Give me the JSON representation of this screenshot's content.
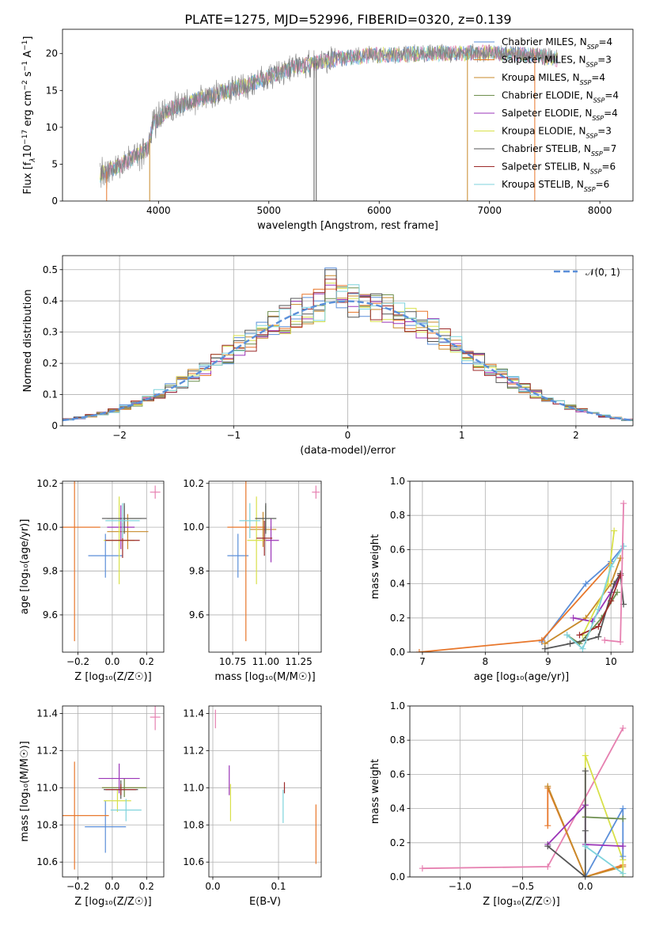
{
  "figure": {
    "title": "PLATE=1275, MJD=52996, FIBERID=0320, z=0.139",
    "colors": {
      "chabrier_miles": "#5b8fd9",
      "salpeter_miles": "#e8772b",
      "kroupa_miles": "#c88a2a",
      "chabrier_elodie": "#6e8f4e",
      "salpeter_elodie": "#9b35b8",
      "kroupa_elodie": "#d8e04a",
      "chabrier_stelib": "#555555",
      "salpeter_stelib": "#9c2a2a",
      "kroupa_stelib": "#7fd3dc",
      "sample_extra": "#e680b0",
      "normal_curve": "#5b8fd9"
    }
  },
  "chart_data": [
    {
      "id": "spectrum",
      "type": "line",
      "xlabel": "wavelength [Angstrom, rest frame]",
      "ylabel_parts": [
        "Flux [f",
        "λ",
        "10",
        "−17",
        " erg cm",
        "−2",
        " s",
        "−1",
        " A",
        "−1",
        "]"
      ],
      "xlim": [
        3130,
        8300
      ],
      "ylim": [
        0,
        23.3
      ],
      "xticks": [
        4000,
        5000,
        6000,
        7000,
        8000
      ],
      "yticks": [
        0,
        5,
        10,
        15,
        20
      ],
      "grid": false,
      "legend_position": "right",
      "legend": [
        {
          "label": "Chabrier MILES, N",
          "sub": "SSP",
          "tail": "=4",
          "color_key": "chabrier_miles"
        },
        {
          "label": "Salpeter MILES, N",
          "sub": "SSP",
          "tail": "=3",
          "color_key": "salpeter_miles"
        },
        {
          "label": "Kroupa MILES, N",
          "sub": "SSP",
          "tail": "=4",
          "color_key": "kroupa_miles"
        },
        {
          "label": "Chabrier ELODIE, N",
          "sub": "SSP",
          "tail": "=4",
          "color_key": "chabrier_elodie"
        },
        {
          "label": "Salpeter ELODIE, N",
          "sub": "SSP",
          "tail": "=4",
          "color_key": "salpeter_elodie"
        },
        {
          "label": "Kroupa ELODIE, N",
          "sub": "SSP",
          "tail": "=3",
          "color_key": "kroupa_elodie"
        },
        {
          "label": "Chabrier STELIB, N",
          "sub": "SSP",
          "tail": "=7",
          "color_key": "chabrier_stelib"
        },
        {
          "label": "Salpeter STELIB, N",
          "sub": "SSP",
          "tail": "=6",
          "color_key": "salpeter_stelib"
        },
        {
          "label": "Kroupa STELIB, N",
          "sub": "SSP",
          "tail": "=6",
          "color_key": "kroupa_stelib"
        }
      ],
      "continuum": [
        [
          3470,
          3.6
        ],
        [
          3650,
          4.8
        ],
        [
          3900,
          7.0
        ],
        [
          3950,
          10.5
        ],
        [
          4100,
          12.5
        ],
        [
          4400,
          14.0
        ],
        [
          4800,
          15.7
        ],
        [
          5200,
          18.0
        ],
        [
          5600,
          19.3
        ],
        [
          6000,
          19.8
        ],
        [
          6500,
          20.0
        ],
        [
          7000,
          20.1
        ],
        [
          7400,
          19.8
        ],
        [
          7600,
          19.3
        ]
      ],
      "model_colors": [
        "chabrier_miles",
        "kroupa_elodie",
        "kroupa_stelib",
        "sample_extra"
      ],
      "spikes": [
        {
          "x": 3530,
          "y": 0,
          "color_key": "salpeter_miles"
        },
        {
          "x": 3920,
          "y": 0,
          "color_key": "kroupa_miles"
        },
        {
          "x": 5410,
          "y": 0,
          "color_key": "chabrier_stelib"
        },
        {
          "x": 5430,
          "y": 0,
          "color_key": "chabrier_stelib"
        },
        {
          "x": 6800,
          "y": 0,
          "color_key": "kroupa_miles"
        },
        {
          "x": 7410,
          "y": 0,
          "color_key": "salpeter_miles"
        }
      ]
    },
    {
      "id": "residuals",
      "type": "histogram",
      "xlabel": "(data-model)/error",
      "ylabel": "Normed distribution",
      "xlim": [
        -2.5,
        2.5
      ],
      "ylim": [
        0,
        0.545
      ],
      "xticks": [
        -2,
        -1,
        0,
        1,
        2
      ],
      "yticks": [
        0.0,
        0.1,
        0.2,
        0.3,
        0.4,
        0.5
      ],
      "grid": true,
      "legend_position": "top-right",
      "legend_label": "𝒩(0, 1)",
      "bin_width": 0.1,
      "bin_start": -2.5,
      "reference_curve": {
        "name": "N(0,1)",
        "mean": 0,
        "sigma": 1
      },
      "series_colors": [
        "chabrier_miles",
        "salpeter_miles",
        "kroupa_miles",
        "chabrier_elodie",
        "salpeter_elodie",
        "kroupa_elodie",
        "chabrier_stelib",
        "salpeter_stelib",
        "kroupa_stelib"
      ],
      "seeds": [
        3,
        7,
        11,
        13,
        17,
        19,
        23,
        29,
        31
      ]
    },
    {
      "id": "age-vs-metallicity",
      "type": "scatter",
      "xlabel": "Z [log₁₀(Z/Z☉)]",
      "ylabel": "age  [log₁₀(age/yr)]",
      "xlim": [
        -0.29,
        0.3
      ],
      "ylim": [
        9.43,
        10.21
      ],
      "xticks": [
        -0.2,
        0.0,
        0.2
      ],
      "xticklabels": [
        "−0.2",
        "0.0",
        "0.2"
      ],
      "yticks": [
        9.6,
        9.8,
        10.0,
        10.2
      ],
      "yticklabels": [
        "9.6",
        "9.8",
        "10.0",
        "10.2"
      ],
      "grid": true,
      "points": [
        {
          "x": -0.04,
          "y": 9.87,
          "xerr": 0.1,
          "yerr": 0.1,
          "color_key": "chabrier_miles"
        },
        {
          "x": -0.22,
          "y": 10.0,
          "xerr": 0.15,
          "yerr": 0.52,
          "color_key": "salpeter_miles"
        },
        {
          "x": 0.09,
          "y": 9.98,
          "xerr": 0.12,
          "yerr": 0.08,
          "color_key": "kroupa_miles"
        },
        {
          "x": 0.07,
          "y": 10.04,
          "xerr": 0.1,
          "yerr": 0.06,
          "color_key": "chabrier_elodie"
        },
        {
          "x": 0.05,
          "y": 10.0,
          "xerr": 0.08,
          "yerr": 0.1,
          "color_key": "salpeter_elodie"
        },
        {
          "x": 0.04,
          "y": 9.94,
          "xerr": 0.09,
          "yerr": 0.2,
          "color_key": "kroupa_elodie"
        },
        {
          "x": 0.07,
          "y": 10.04,
          "xerr": 0.13,
          "yerr": 0.07,
          "color_key": "chabrier_stelib"
        },
        {
          "x": 0.06,
          "y": 9.94,
          "xerr": 0.1,
          "yerr": 0.08,
          "color_key": "salpeter_stelib"
        },
        {
          "x": 0.06,
          "y": 10.03,
          "xerr": 0.1,
          "yerr": 0.08,
          "color_key": "kroupa_stelib"
        },
        {
          "x": 0.25,
          "y": 10.16,
          "xerr": 0.03,
          "yerr": 0.03,
          "color_key": "sample_extra"
        }
      ]
    },
    {
      "id": "age-vs-mass",
      "type": "scatter",
      "xlabel": "mass [log₁₀(M/M☉)]",
      "ylabel": "",
      "xlim": [
        10.57,
        11.42
      ],
      "ylim": [
        9.43,
        10.21
      ],
      "xticks": [
        10.75,
        11.0,
        11.25
      ],
      "xticklabels": [
        "10.75",
        "11.00",
        "11.25"
      ],
      "yticks": [
        9.6,
        9.8,
        10.0,
        10.2
      ],
      "yticklabels": [
        "9.6",
        "9.8",
        "10.0",
        "10.2"
      ],
      "grid": true,
      "points": [
        {
          "x": 10.79,
          "y": 9.87,
          "xerr": 0.08,
          "yerr": 0.1,
          "color_key": "chabrier_miles"
        },
        {
          "x": 10.85,
          "y": 10.0,
          "xerr": 0.14,
          "yerr": 0.52,
          "color_key": "salpeter_miles"
        },
        {
          "x": 10.98,
          "y": 9.99,
          "xerr": 0.1,
          "yerr": 0.08,
          "color_key": "kroupa_miles"
        },
        {
          "x": 11.0,
          "y": 10.04,
          "xerr": 0.08,
          "yerr": 0.06,
          "color_key": "chabrier_elodie"
        },
        {
          "x": 11.04,
          "y": 9.94,
          "xerr": 0.06,
          "yerr": 0.1,
          "color_key": "salpeter_elodie"
        },
        {
          "x": 10.93,
          "y": 9.94,
          "xerr": 0.07,
          "yerr": 0.2,
          "color_key": "kroupa_elodie"
        },
        {
          "x": 11.0,
          "y": 10.04,
          "xerr": 0.08,
          "yerr": 0.07,
          "color_key": "chabrier_stelib"
        },
        {
          "x": 10.99,
          "y": 9.95,
          "xerr": 0.06,
          "yerr": 0.08,
          "color_key": "salpeter_stelib"
        },
        {
          "x": 10.88,
          "y": 10.03,
          "xerr": 0.08,
          "yerr": 0.08,
          "color_key": "kroupa_stelib"
        },
        {
          "x": 11.38,
          "y": 10.16,
          "xerr": 0.03,
          "yerr": 0.03,
          "color_key": "sample_extra"
        }
      ]
    },
    {
      "id": "mass-weight-vs-age",
      "type": "line",
      "xlabel": "age  [log₁₀(age/yr)]",
      "ylabel": "mass weight",
      "xlim": [
        6.8,
        10.35
      ],
      "ylim": [
        0.0,
        1.0
      ],
      "xticks": [
        7,
        8,
        9,
        10
      ],
      "yticks": [
        0.0,
        0.2,
        0.4,
        0.6,
        0.8,
        1.0
      ],
      "yticklabels": [
        "0.0",
        "0.2",
        "0.4",
        "0.6",
        "0.8",
        "1.0"
      ],
      "grid": true,
      "series": [
        {
          "color_key": "chabrier_miles",
          "x": [
            8.9,
            9.6,
            10.0,
            10.2
          ],
          "y": [
            0.06,
            0.4,
            0.53,
            0.62
          ]
        },
        {
          "color_key": "salpeter_miles",
          "x": [
            6.95,
            8.9,
            10.0
          ],
          "y": [
            0.0,
            0.07,
            0.52
          ]
        },
        {
          "color_key": "kroupa_miles",
          "x": [
            8.95,
            9.6,
            10.0,
            10.15
          ],
          "y": [
            0.05,
            0.2,
            0.4,
            0.55
          ]
        },
        {
          "color_key": "chabrier_elodie",
          "x": [
            9.3,
            9.5,
            9.85,
            10.1
          ],
          "y": [
            0.1,
            0.05,
            0.2,
            0.35
          ]
        },
        {
          "color_key": "salpeter_elodie",
          "x": [
            9.4,
            9.7,
            10.0,
            10.15
          ],
          "y": [
            0.2,
            0.18,
            0.35,
            0.45
          ]
        },
        {
          "color_key": "kroupa_elodie",
          "x": [
            9.55,
            9.95,
            10.05
          ],
          "y": [
            0.1,
            0.4,
            0.71
          ]
        },
        {
          "color_key": "chabrier_stelib",
          "x": [
            8.95,
            9.35,
            9.6,
            9.8,
            10.05,
            10.15,
            10.2
          ],
          "y": [
            0.02,
            0.05,
            0.07,
            0.09,
            0.4,
            0.46,
            0.28
          ]
        },
        {
          "color_key": "salpeter_stelib",
          "x": [
            9.5,
            9.8,
            10.0,
            10.15
          ],
          "y": [
            0.1,
            0.15,
            0.3,
            0.45
          ]
        },
        {
          "color_key": "kroupa_stelib",
          "x": [
            9.3,
            9.55,
            9.8,
            10.0,
            10.2
          ],
          "y": [
            0.1,
            0.02,
            0.25,
            0.5,
            0.62
          ]
        },
        {
          "color_key": "sample_extra",
          "x": [
            9.9,
            10.15,
            10.2
          ],
          "y": [
            0.07,
            0.06,
            0.87
          ]
        }
      ]
    },
    {
      "id": "mass-vs-metallicity",
      "type": "scatter",
      "xlabel": "Z [log₁₀(Z/Z☉)]",
      "ylabel": "mass [log₁₀(M/M☉)]",
      "xlim": [
        -0.29,
        0.3
      ],
      "ylim": [
        10.52,
        11.44
      ],
      "xticks": [
        -0.2,
        0.0,
        0.2
      ],
      "xticklabels": [
        "−0.2",
        "0.0",
        "0.2"
      ],
      "yticks": [
        10.6,
        10.8,
        11.0,
        11.2,
        11.4
      ],
      "yticklabels": [
        "10.6",
        "10.8",
        "11.0",
        "11.2",
        "11.4"
      ],
      "grid": true,
      "points": [
        {
          "x": -0.04,
          "y": 10.79,
          "xerr": 0.12,
          "yerr": 0.14,
          "color_key": "chabrier_miles"
        },
        {
          "x": -0.22,
          "y": 10.85,
          "xerr": 0.2,
          "yerr": 0.29,
          "color_key": "salpeter_miles"
        },
        {
          "x": 0.07,
          "y": 11.0,
          "xerr": 0.13,
          "yerr": 0.05,
          "color_key": "kroupa_miles"
        },
        {
          "x": 0.07,
          "y": 11.0,
          "xerr": 0.13,
          "yerr": 0.05,
          "color_key": "chabrier_elodie"
        },
        {
          "x": 0.04,
          "y": 11.05,
          "xerr": 0.12,
          "yerr": 0.08,
          "color_key": "salpeter_elodie"
        },
        {
          "x": 0.03,
          "y": 10.93,
          "xerr": 0.08,
          "yerr": 0.06,
          "color_key": "kroupa_elodie"
        },
        {
          "x": 0.05,
          "y": 10.99,
          "xerr": 0.1,
          "yerr": 0.05,
          "color_key": "chabrier_stelib"
        },
        {
          "x": 0.05,
          "y": 10.99,
          "xerr": 0.09,
          "yerr": 0.03,
          "color_key": "salpeter_stelib"
        },
        {
          "x": 0.08,
          "y": 10.88,
          "xerr": 0.09,
          "yerr": 0.06,
          "color_key": "kroupa_stelib"
        },
        {
          "x": 0.25,
          "y": 11.38,
          "xerr": 0.03,
          "yerr": 0.07,
          "color_key": "sample_extra"
        }
      ]
    },
    {
      "id": "mass-vs-extinction",
      "type": "scatter",
      "xlabel": "E(B-V)",
      "ylabel": "",
      "xlim": [
        -0.006,
        0.165
      ],
      "ylim": [
        10.52,
        11.44
      ],
      "xticks": [
        0.0,
        0.1
      ],
      "xticklabels": [
        "0.0",
        "0.1"
      ],
      "yticks": [
        10.6,
        10.8,
        11.0,
        11.2,
        11.4
      ],
      "yticklabels": [
        "10.6",
        "10.8",
        "11.0",
        "11.2",
        "11.4"
      ],
      "grid": true,
      "points": [
        {
          "x": 0.004,
          "y": 11.37,
          "xerr": 0,
          "yerr": 0.05,
          "color_key": "sample_extra"
        },
        {
          "x": 0.025,
          "y": 11.04,
          "xerr": 0,
          "yerr": 0.08,
          "color_key": "salpeter_elodie"
        },
        {
          "x": 0.027,
          "y": 10.92,
          "xerr": 0,
          "yerr": 0.1,
          "color_key": "kroupa_elodie"
        },
        {
          "x": 0.109,
          "y": 11.0,
          "xerr": 0,
          "yerr": 0.03,
          "color_key": "salpeter_stelib"
        },
        {
          "x": 0.107,
          "y": 10.9,
          "xerr": 0,
          "yerr": 0.09,
          "color_key": "kroupa_stelib"
        },
        {
          "x": 0.157,
          "y": 10.75,
          "xerr": 0,
          "yerr": 0.16,
          "color_key": "salpeter_miles"
        }
      ]
    },
    {
      "id": "mass-weight-vs-metallicity",
      "type": "line",
      "xlabel": "Z [log₁₀(Z/Z☉)]",
      "ylabel": "mass weight",
      "xlim": [
        -1.4,
        0.38
      ],
      "ylim": [
        0.0,
        1.0
      ],
      "xticks": [
        -1.0,
        -0.5,
        0.0
      ],
      "xticklabels": [
        "−1.0",
        "−0.5",
        "0.0"
      ],
      "yticks": [
        0.0,
        0.2,
        0.4,
        0.6,
        0.8,
        1.0
      ],
      "yticklabels": [
        "0.0",
        "0.2",
        "0.4",
        "0.6",
        "0.8",
        "1.0"
      ],
      "grid": true,
      "series": [
        {
          "color_key": "sample_extra",
          "x": [
            -1.3,
            -0.3,
            0.3
          ],
          "y": [
            0.05,
            0.06,
            0.87
          ]
        },
        {
          "color_key": "salpeter_miles",
          "x": [
            -0.3,
            -0.3,
            0.0,
            0.3
          ],
          "y": [
            0.3,
            0.52,
            0.0,
            0.07
          ]
        },
        {
          "color_key": "kroupa_miles",
          "x": [
            -0.3,
            0.0,
            0.3
          ],
          "y": [
            0.53,
            0.0,
            0.06
          ]
        },
        {
          "color_key": "kroupa_elodie",
          "x": [
            0.0,
            0.0,
            0.3,
            0.3
          ],
          "y": [
            0.35,
            0.71,
            0.1,
            0.0
          ]
        },
        {
          "color_key": "chabrier_miles",
          "x": [
            0.0,
            0.3,
            0.3
          ],
          "y": [
            0.0,
            0.4,
            0.12
          ]
        },
        {
          "color_key": "salpeter_elodie",
          "x": [
            -0.3,
            0.0,
            0.0,
            0.3
          ],
          "y": [
            0.19,
            0.42,
            0.19,
            0.18
          ]
        },
        {
          "color_key": "chabrier_elodie",
          "x": [
            0.0,
            0.3
          ],
          "y": [
            0.35,
            0.34
          ]
        },
        {
          "color_key": "chabrier_stelib",
          "x": [
            -0.3,
            0.0,
            0.0,
            0.0
          ],
          "y": [
            0.18,
            0.0,
            0.27,
            0.62
          ]
        },
        {
          "color_key": "kroupa_stelib",
          "x": [
            0.0,
            0.3
          ],
          "y": [
            0.18,
            0.02
          ]
        }
      ]
    }
  ]
}
